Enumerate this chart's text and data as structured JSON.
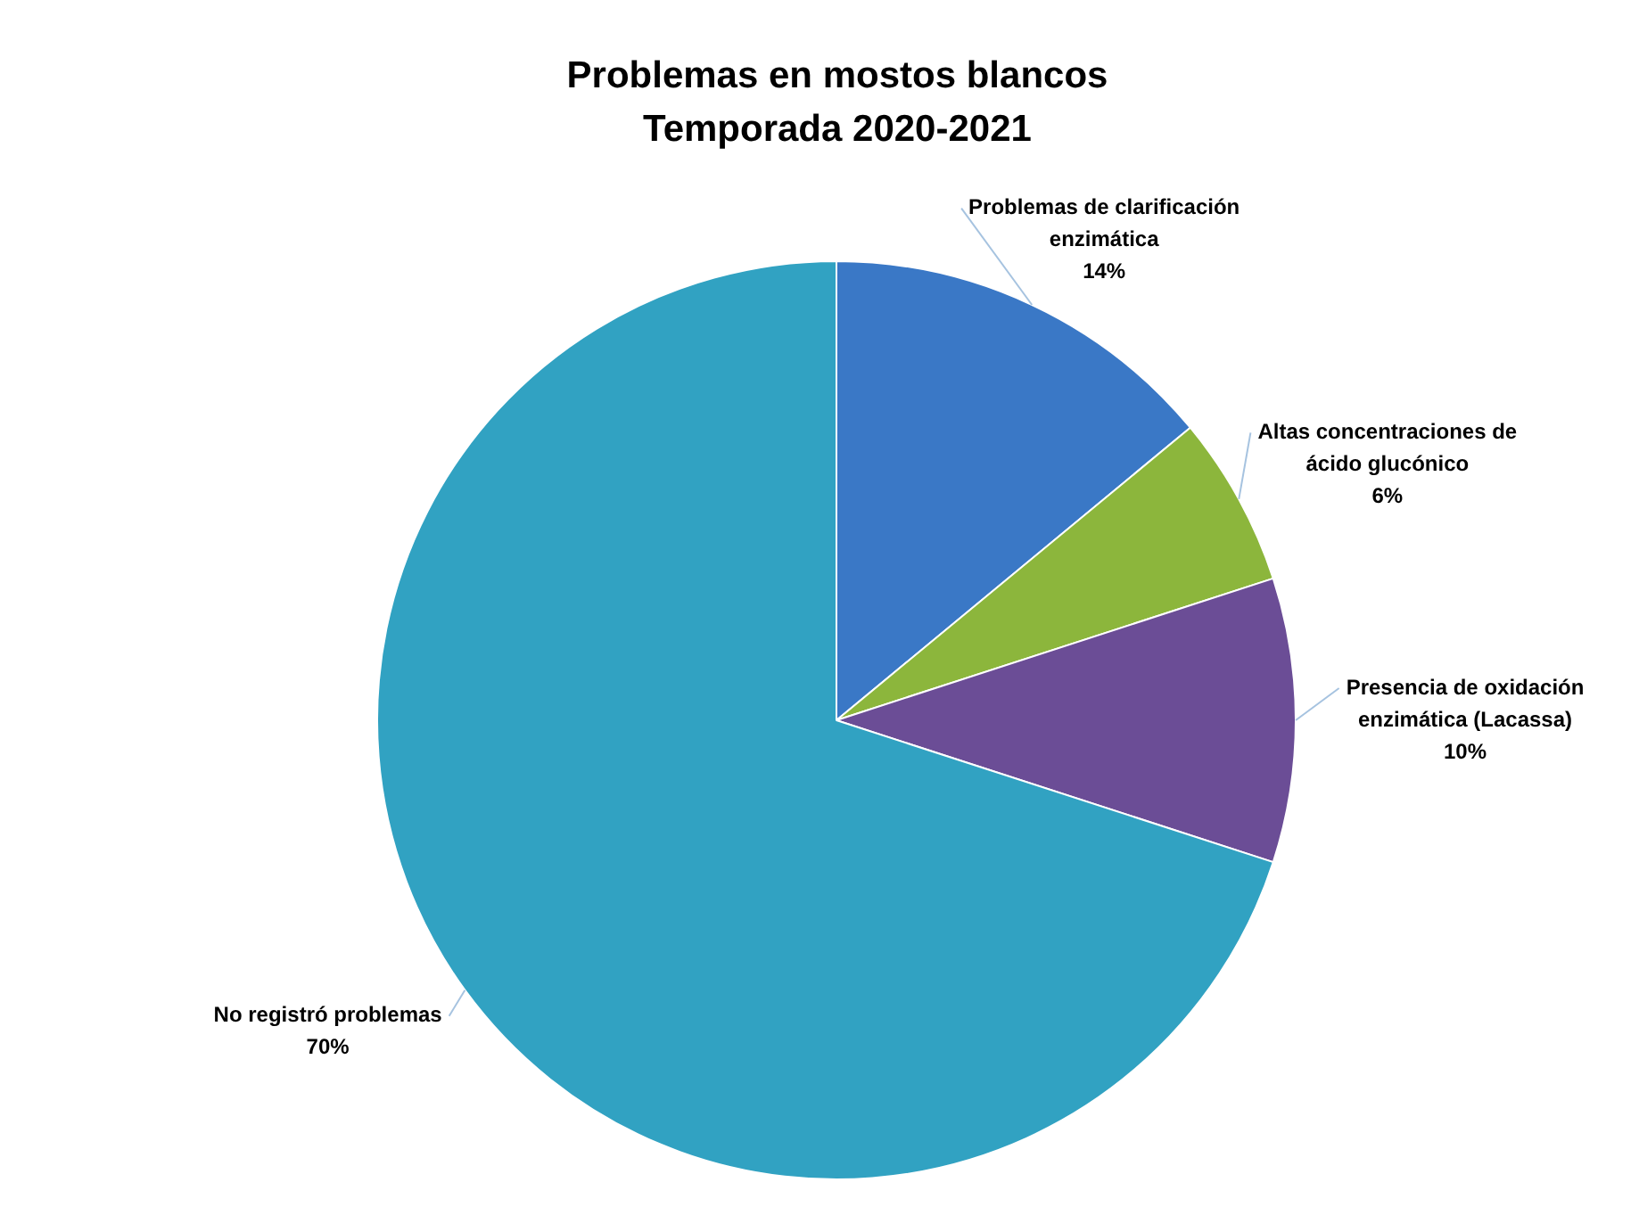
{
  "chart_data": {
    "type": "pie",
    "title": "Problemas en mostos blancos\nTemporada 2020-2021",
    "categories": [
      "Problemas de clarificación enzimática",
      "Altas concentraciones de ácido glucónico",
      "Presencia de oxidación enzimática (Lacassa)",
      "No registró problemas"
    ],
    "values": [
      14,
      6,
      10,
      70
    ],
    "value_labels": [
      "14%",
      "6%",
      "10%",
      "70%"
    ],
    "colors": [
      "#3a78c6",
      "#8cb63c",
      "#6b4d96",
      "#31a2c2"
    ],
    "legend": false
  }
}
